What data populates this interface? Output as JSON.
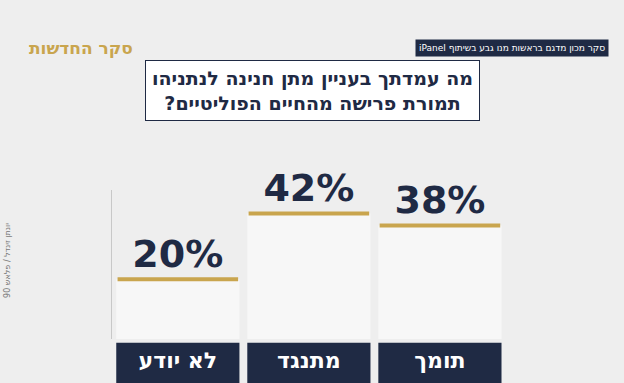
{
  "chart_data": {
    "type": "bar",
    "header": "סקר החדשות",
    "source_note": "סקר מכון מדגם בראשות מנו גבע בשיתוף iPanel",
    "photo_credit": "יונתן זינדל / פלאש 90",
    "title": [
      "מה עמדתך בעניין מתן חנינה לנתניהו",
      "תמורת פרישה מהחיים הפוליטיים?"
    ],
    "categories": [
      "לא יודע",
      "מתנגד",
      "תומך"
    ],
    "values": [
      20,
      42,
      38
    ],
    "value_labels": [
      "20%",
      "42%",
      "38%"
    ],
    "color": "#f7f7f7",
    "ylim": [
      0,
      50
    ],
    "grid": false,
    "data_labels": true,
    "tick_labels": "x"
  }
}
